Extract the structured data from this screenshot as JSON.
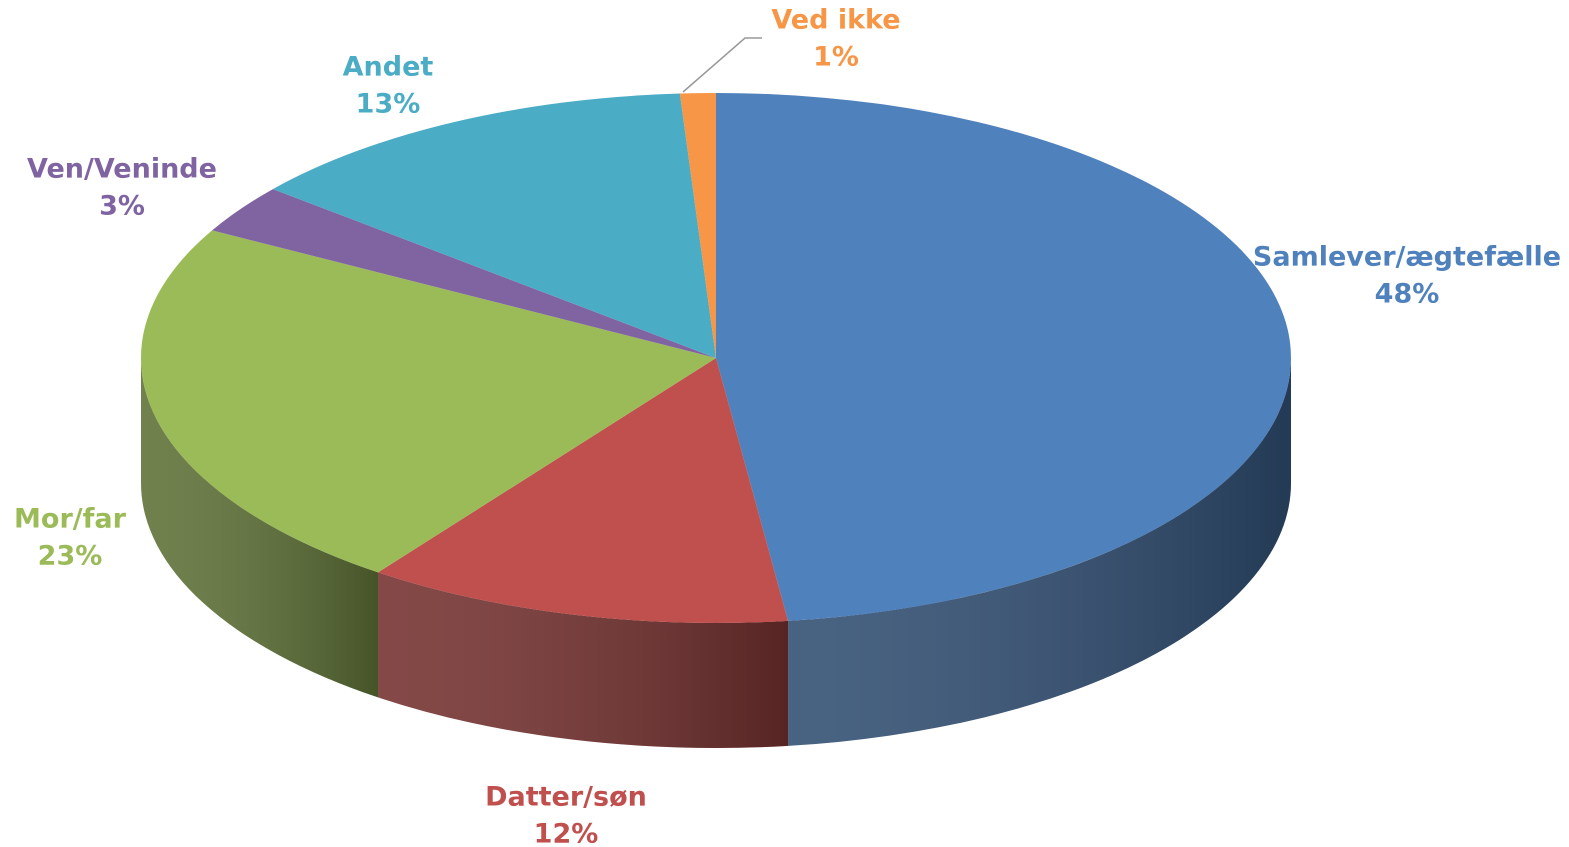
{
  "chart_data": {
    "type": "pie",
    "categories": [
      "Samlever/ægtefælle",
      "Datter/søn",
      "Mor/far",
      "Ven/Veninde",
      "Andet",
      "Ved ikke"
    ],
    "values": [
      48,
      12,
      23,
      3,
      13,
      1
    ],
    "value_labels": [
      "48%",
      "12%",
      "23%",
      "3%",
      "13%",
      "1%"
    ],
    "colors": [
      "#4f81bd",
      "#c0504d",
      "#9bbb59",
      "#8064a2",
      "#4bacc6",
      "#f79646"
    ]
  }
}
